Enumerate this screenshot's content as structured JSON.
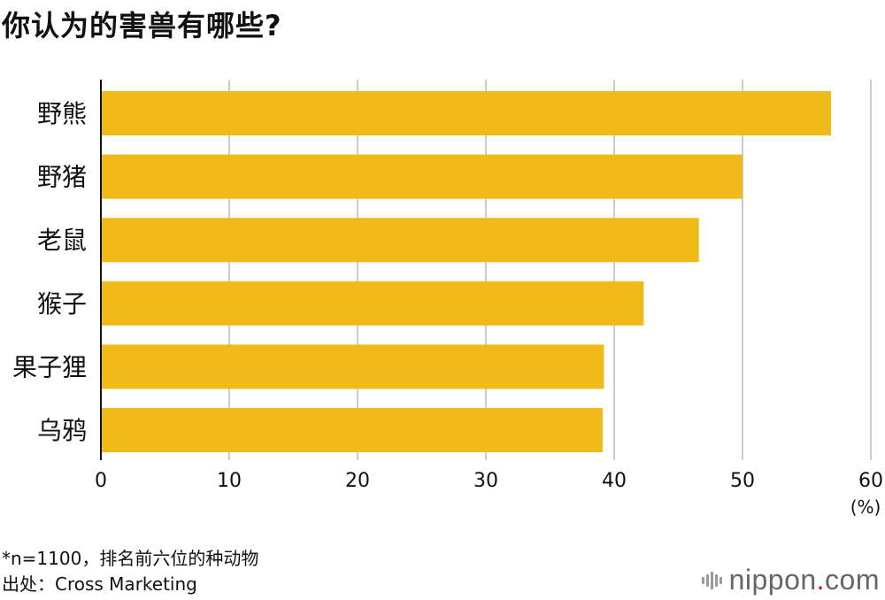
{
  "title": "你认为的害兽有哪些?",
  "chart_data": {
    "type": "bar",
    "orientation": "horizontal",
    "categories": [
      "野熊",
      "野猪",
      "老鼠",
      "猴子",
      "果子狸",
      "乌鸦"
    ],
    "values": [
      56.9,
      50.0,
      46.6,
      42.3,
      39.2,
      39.1
    ],
    "xlim": [
      0,
      60
    ],
    "xticks": [
      "0",
      "10",
      "20",
      "30",
      "40",
      "50",
      "60"
    ],
    "unit_label": "(%)",
    "grid": true,
    "bar_color": "#F0BA18"
  },
  "footnotes": [
    "*n=1100，排名前六位的种动物",
    "出处：Cross Marketing"
  ],
  "brand": {
    "name": "nippon",
    "dot": ".",
    "tld": "com"
  }
}
